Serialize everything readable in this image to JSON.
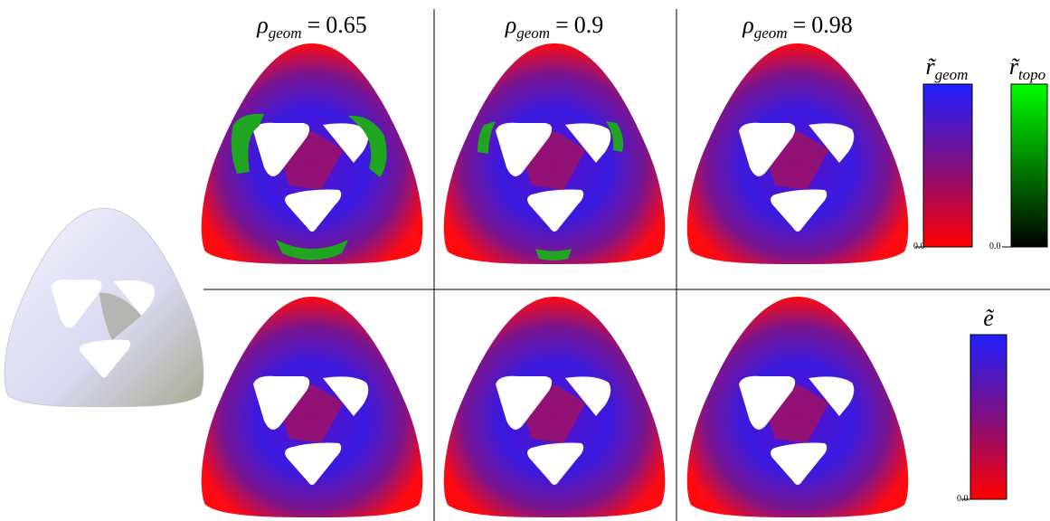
{
  "figure": {
    "columns": [
      {
        "symbol": "ρ",
        "subscript": "geom",
        "relation": "=",
        "value": "0.65"
      },
      {
        "symbol": "ρ",
        "subscript": "geom",
        "relation": "=",
        "value": "0.9"
      },
      {
        "symbol": "ρ",
        "subscript": "geom",
        "relation": "=",
        "value": "0.98"
      }
    ],
    "colorbars": [
      {
        "symbol": "r̃",
        "subscript": "geom",
        "min_label": "0.0"
      },
      {
        "symbol": "r̃",
        "subscript": "topo",
        "min_label": "0.0"
      },
      {
        "symbol": "ẽ",
        "subscript": null,
        "min_label": "0.0"
      }
    ]
  }
}
